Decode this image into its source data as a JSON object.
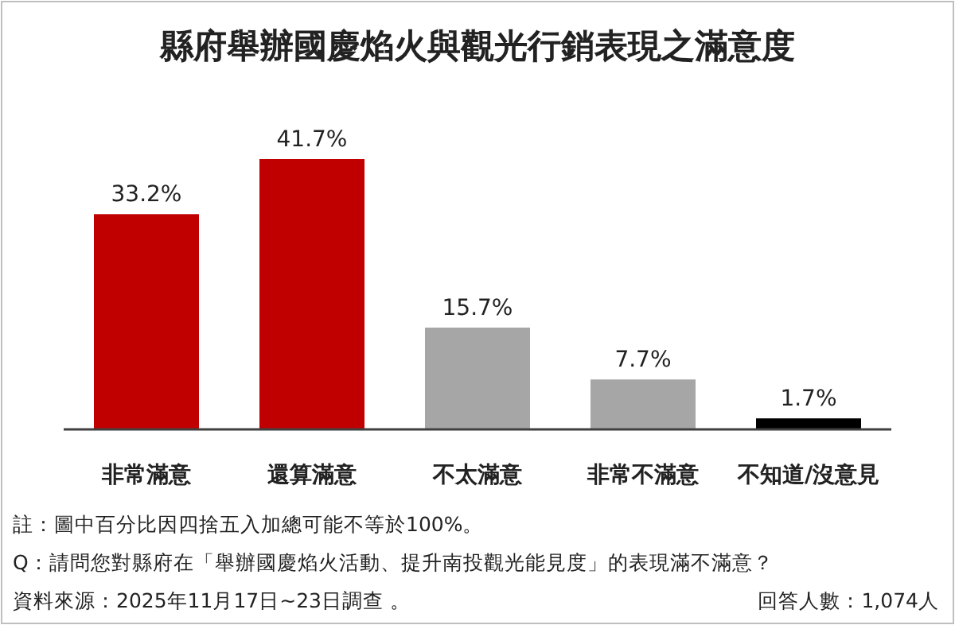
{
  "chart_data": {
    "type": "bar",
    "title": "縣府舉辦國慶焰火與觀光行銷表現之滿意度",
    "categories": [
      "非常滿意",
      "還算滿意",
      "不太滿意",
      "非常不滿意",
      "不知道/沒意見"
    ],
    "values": [
      33.2,
      41.7,
      15.7,
      7.7,
      1.7
    ],
    "colors": [
      "#c00000",
      "#c00000",
      "#a6a6a6",
      "#a6a6a6",
      "#000000"
    ],
    "value_labels": [
      "33.2%",
      "41.7%",
      "15.7%",
      "7.7%",
      "1.7%"
    ],
    "annotations": [
      "註：圖中百分比因四捨五入加總可能不等於100%。",
      "Q：請問您對縣府在「舉辦國慶焰火活動、提升南投觀光能見度」的表現滿不滿意？",
      "資料來源：2025年11月17日~23日調查 。",
      "回答人數：1,074人"
    ]
  }
}
